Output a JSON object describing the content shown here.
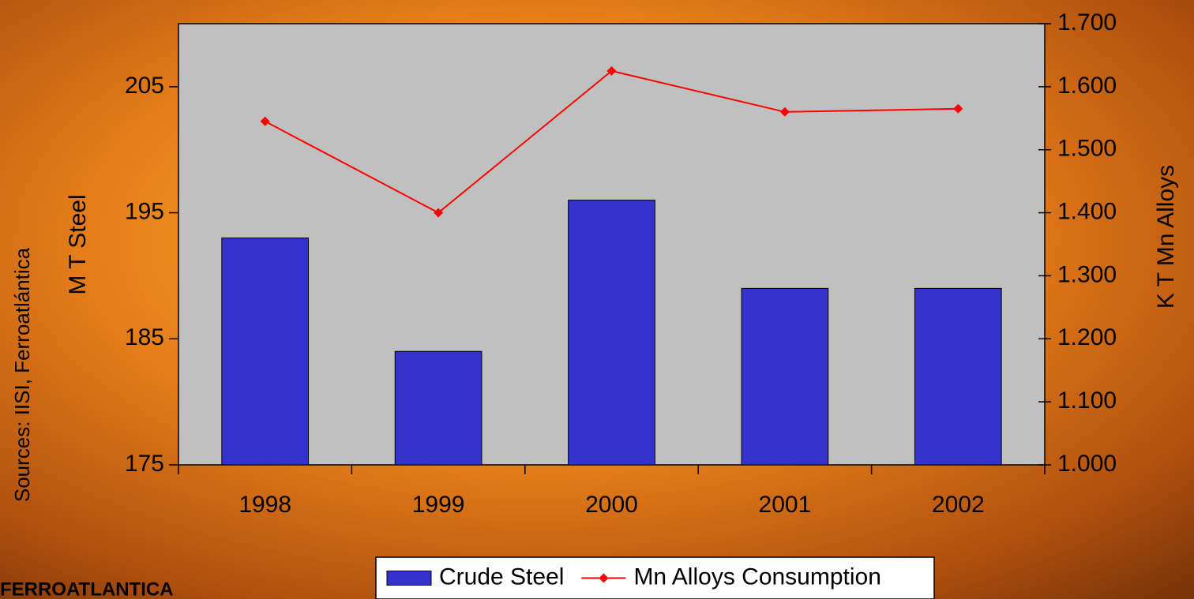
{
  "chart_data": {
    "type": "bar_line",
    "categories": [
      "1998",
      "1999",
      "2000",
      "2001",
      "2002"
    ],
    "series": [
      {
        "name": "Crude Steel",
        "color": "#3333cc",
        "type": "bar",
        "values": [
          193,
          184,
          196,
          189,
          189
        ]
      },
      {
        "name": "Mn Alloys Consumption",
        "color": "#ff0000",
        "type": "line",
        "axis": "y2",
        "values": [
          1545,
          1400,
          1625,
          1560,
          1565
        ]
      }
    ],
    "ylabel": "M T Steel",
    "y2label": "K T Mn Alloys",
    "ylim": [
      175,
      210
    ],
    "yticks": [
      175,
      185,
      195,
      205
    ],
    "y2lim": [
      1000,
      1700
    ],
    "y2ticks": [
      {
        "value": 1000,
        "label": "1.000"
      },
      {
        "value": 1100,
        "label": "1.100"
      },
      {
        "value": 1200,
        "label": "1.200"
      },
      {
        "value": 1300,
        "label": "1.300"
      },
      {
        "value": 1400,
        "label": "1.400"
      },
      {
        "value": 1500,
        "label": "1.500"
      },
      {
        "value": 1600,
        "label": "1.600"
      },
      {
        "value": 1700,
        "label": "1.700"
      }
    ],
    "source_note": "Sources: IISI, Ferroatlántica",
    "brand": "FERROATLANTICA",
    "legend": "bottom"
  }
}
